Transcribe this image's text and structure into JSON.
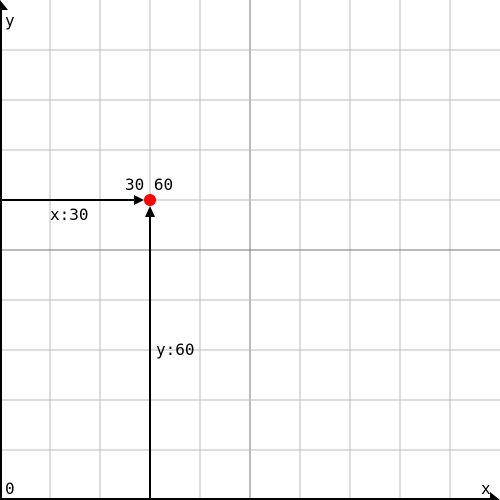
{
  "plot": {
    "x_axis_label": "x",
    "y_axis_label": "y",
    "origin_label": "0",
    "x_range": [
      0,
      100
    ],
    "y_range": [
      0,
      100
    ],
    "grid_step": 10,
    "grid": true,
    "colors": {
      "grid_minor": "#bbbbbb",
      "grid_major": "#777777",
      "axis": "#000000",
      "point": "#ff0000",
      "text": "#000000"
    }
  },
  "point": {
    "x": 30,
    "y": 60,
    "coord_label": "30 60",
    "x_guide_label": "x:30",
    "y_guide_label": "y:60"
  }
}
